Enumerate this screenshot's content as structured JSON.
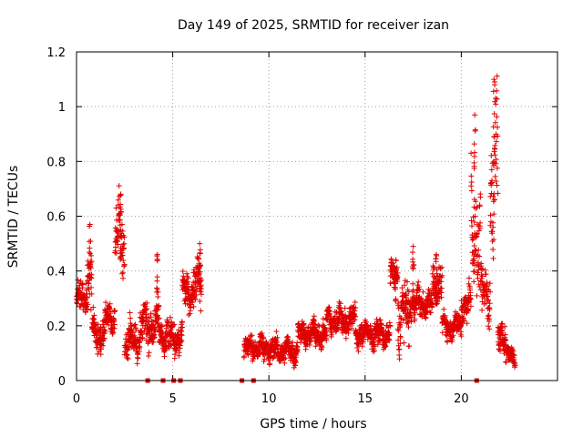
{
  "chart_data": {
    "type": "scatter",
    "title": "Day 149 of 2025, SRMTID for receiver izan",
    "xlabel": "GPS time / hours",
    "ylabel": "SRMTID / TECUs",
    "xlim": [
      0,
      25
    ],
    "ylim": [
      0,
      1.2
    ],
    "xticks": [
      0,
      5,
      10,
      15,
      20
    ],
    "yticks": [
      0,
      0.2,
      0.4,
      0.6,
      0.8,
      1,
      1.2
    ],
    "xtick_labels": [
      "0",
      "5",
      "10",
      "15",
      "20"
    ],
    "ytick_labels": [
      "0",
      "0.2",
      "0.4",
      "0.6",
      "0.8",
      "1",
      "1.2"
    ],
    "grid": true,
    "marker": "+",
    "series_color": "#e00000",
    "zero_markers_x": [
      3.7,
      4.5,
      5.05,
      5.4,
      8.6,
      9.2,
      20.8
    ],
    "segments": [
      {
        "x0": 0.0,
        "x1": 0.5,
        "base": 0.3,
        "amp": 0.06
      },
      {
        "x0": 0.5,
        "x1": 0.8,
        "base": 0.38,
        "amp": 0.14
      },
      {
        "x0": 0.8,
        "x1": 1.5,
        "base": 0.17,
        "amp": 0.07
      },
      {
        "x0": 1.5,
        "x1": 2.0,
        "base": 0.23,
        "amp": 0.07
      },
      {
        "x0": 2.0,
        "x1": 2.5,
        "base": 0.52,
        "amp": 0.14
      },
      {
        "x0": 2.5,
        "x1": 3.3,
        "base": 0.15,
        "amp": 0.07
      },
      {
        "x0": 3.3,
        "x1": 4.3,
        "base": 0.2,
        "amp": 0.09
      },
      {
        "x0": 4.3,
        "x1": 5.5,
        "base": 0.16,
        "amp": 0.07
      },
      {
        "x0": 5.5,
        "x1": 6.1,
        "base": 0.32,
        "amp": 0.07
      },
      {
        "x0": 6.1,
        "x1": 6.5,
        "base": 0.36,
        "amp": 0.1
      },
      {
        "x0": 8.7,
        "x1": 10.0,
        "base": 0.12,
        "amp": 0.05
      },
      {
        "x0": 10.0,
        "x1": 11.5,
        "base": 0.11,
        "amp": 0.05
      },
      {
        "x0": 11.5,
        "x1": 13.0,
        "base": 0.17,
        "amp": 0.05
      },
      {
        "x0": 13.0,
        "x1": 14.5,
        "base": 0.22,
        "amp": 0.06
      },
      {
        "x0": 14.5,
        "x1": 16.3,
        "base": 0.17,
        "amp": 0.05
      },
      {
        "x0": 16.3,
        "x1": 16.7,
        "base": 0.38,
        "amp": 0.06
      },
      {
        "x0": 16.7,
        "x1": 17.3,
        "base": 0.24,
        "amp": 0.12
      },
      {
        "x0": 17.3,
        "x1": 18.5,
        "base": 0.28,
        "amp": 0.06
      },
      {
        "x0": 18.5,
        "x1": 19.0,
        "base": 0.35,
        "amp": 0.08
      },
      {
        "x0": 19.0,
        "x1": 20.0,
        "base": 0.2,
        "amp": 0.05
      },
      {
        "x0": 20.0,
        "x1": 20.5,
        "base": 0.28,
        "amp": 0.07
      },
      {
        "x0": 20.5,
        "x1": 21.0,
        "base": 0.55,
        "amp": 0.25
      },
      {
        "x0": 21.0,
        "x1": 21.5,
        "base": 0.32,
        "amp": 0.1
      },
      {
        "x0": 21.5,
        "x1": 21.9,
        "base": 0.7,
        "amp": 0.35
      },
      {
        "x0": 21.9,
        "x1": 22.3,
        "base": 0.17,
        "amp": 0.06
      },
      {
        "x0": 22.3,
        "x1": 22.8,
        "base": 0.09,
        "amp": 0.04
      }
    ],
    "peaks": [
      {
        "x": 0.7,
        "y": 0.57
      },
      {
        "x": 2.3,
        "y": 0.68
      },
      {
        "x": 4.2,
        "y": 0.46
      },
      {
        "x": 6.4,
        "y": 0.5
      },
      {
        "x": 16.6,
        "y": 0.44
      },
      {
        "x": 17.5,
        "y": 0.49
      },
      {
        "x": 18.7,
        "y": 0.46
      },
      {
        "x": 20.7,
        "y": 0.97
      },
      {
        "x": 21.7,
        "y": 1.1
      }
    ]
  }
}
